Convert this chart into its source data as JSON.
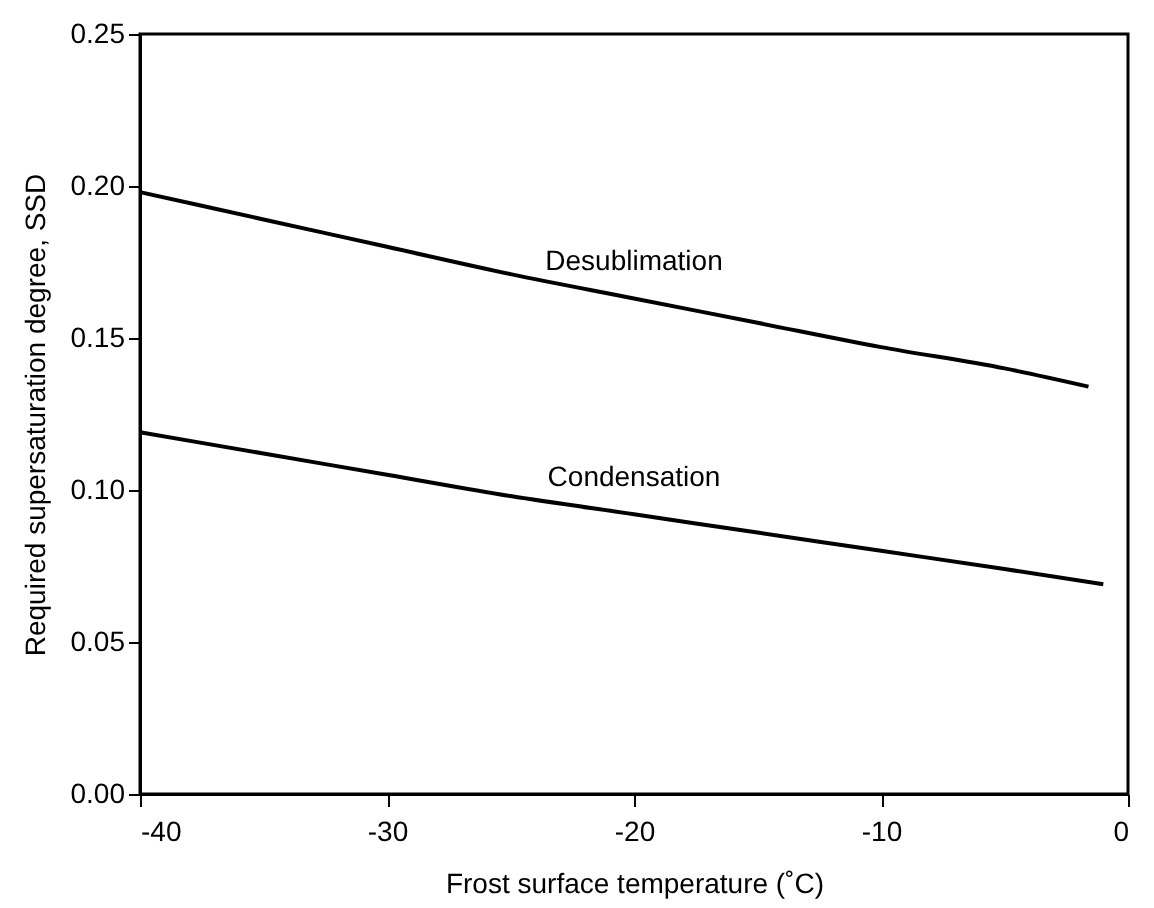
{
  "chart_data": {
    "type": "line",
    "xlabel": "Frost surface temperature (˚C)",
    "ylabel": "Required supersaturation degree, SSD",
    "xlim": [
      -40,
      0
    ],
    "xticks": [
      -40,
      -30,
      -20,
      -10,
      0
    ],
    "ylim": [
      0,
      0.25
    ],
    "yticks": [
      {
        "value": 0,
        "label": "0.00"
      },
      0.05,
      {
        "value": 0.1,
        "label": "0.10"
      },
      0.15,
      {
        "value": 0.2,
        "label": "0.20"
      },
      0.25
    ],
    "grid": false,
    "legend": false,
    "marker": "none",
    "line_style": "solid",
    "series": [
      {
        "name": "Desublimation",
        "color": "#000000",
        "x": [
          -40,
          -35,
          -30,
          -25,
          -20,
          -15,
          -10,
          -5,
          -1.6
        ],
        "values": [
          0.198,
          0.189,
          0.18,
          0.171,
          0.163,
          0.155,
          0.147,
          0.14,
          0.134
        ]
      },
      {
        "name": "Condensation",
        "color": "#000000",
        "x": [
          -40,
          -35,
          -30,
          -25,
          -20,
          -15,
          -10,
          -5,
          -1
        ],
        "values": [
          0.119,
          0.112,
          0.105,
          0.098,
          0.092,
          0.086,
          0.08,
          0.074,
          0.069
        ]
      }
    ]
  }
}
